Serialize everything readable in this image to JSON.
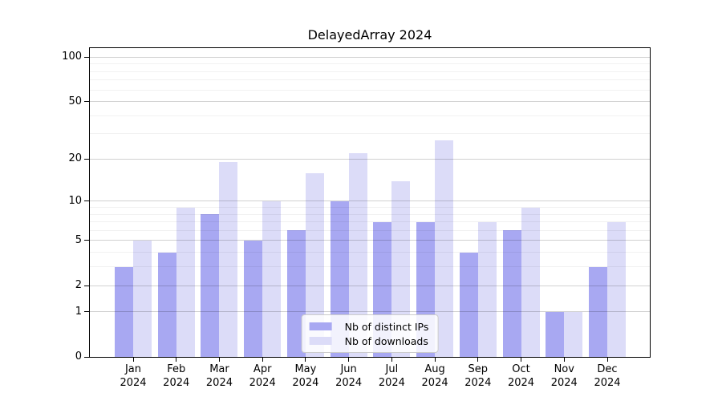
{
  "chart_data": {
    "type": "bar",
    "title": "DelayedArray 2024",
    "categories": [
      "Jan",
      "Feb",
      "Mar",
      "Apr",
      "May",
      "Jun",
      "Jul",
      "Aug",
      "Sep",
      "Oct",
      "Nov",
      "Dec"
    ],
    "category_year": "2024",
    "series": [
      {
        "name": "Nb of distinct IPs",
        "color": "#a8a8f2",
        "values": [
          3,
          4,
          8,
          5,
          6,
          10,
          7,
          7,
          4,
          6,
          1,
          3
        ]
      },
      {
        "name": "Nb of downloads",
        "color": "#dcdcf8",
        "values": [
          5,
          9,
          19,
          10,
          16,
          22,
          14,
          27,
          7,
          9,
          1,
          7
        ]
      }
    ],
    "y_axis": {
      "scale": "log1p",
      "major_ticks": [
        0,
        1,
        2,
        5,
        10,
        20,
        50,
        100
      ],
      "minor_ticks": [
        3,
        4,
        6,
        7,
        8,
        9,
        30,
        40,
        60,
        70,
        80,
        90
      ],
      "max_value": 115
    },
    "legend": {
      "position": "bottom-center",
      "entries": [
        "Nb of distinct IPs",
        "Nb of downloads"
      ]
    },
    "grid": true,
    "colors": {
      "frame": "#000000",
      "text": "#000000",
      "legend_border": "#cccccc"
    }
  }
}
